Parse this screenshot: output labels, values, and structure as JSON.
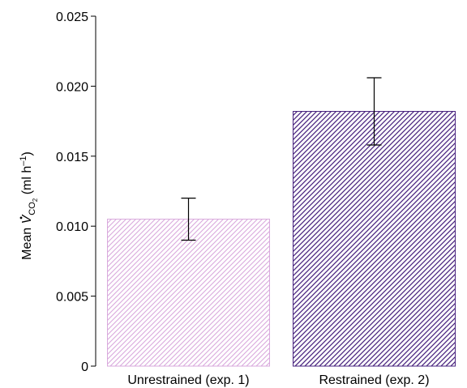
{
  "chart_data": {
    "type": "bar",
    "categories": [
      "Unrestrained (exp. 1)",
      "Restrained (exp. 2)"
    ],
    "values": [
      0.0105,
      0.0182
    ],
    "error_bars": [
      {
        "low": 0.009,
        "high": 0.012
      },
      {
        "low": 0.0158,
        "high": 0.0206
      }
    ],
    "ylabel": {
      "prefix": "Mean ",
      "symbol": "V",
      "sub": "CO",
      "subsub": "2",
      "suffix": " (ml h",
      "sup": "–1",
      "close": ")"
    },
    "xlabel": "",
    "ylim": [
      0,
      0.025
    ],
    "yticks": [
      "0",
      "0.005",
      "0.010",
      "0.015",
      "0.020",
      "0.025"
    ],
    "ytick_values": [
      0,
      0.005,
      0.01,
      0.015,
      0.02,
      0.025
    ],
    "grid": false,
    "bar_colors": [
      "#d9a9dd",
      "#4a2580"
    ],
    "bar_style": "diagonal-hatch"
  }
}
